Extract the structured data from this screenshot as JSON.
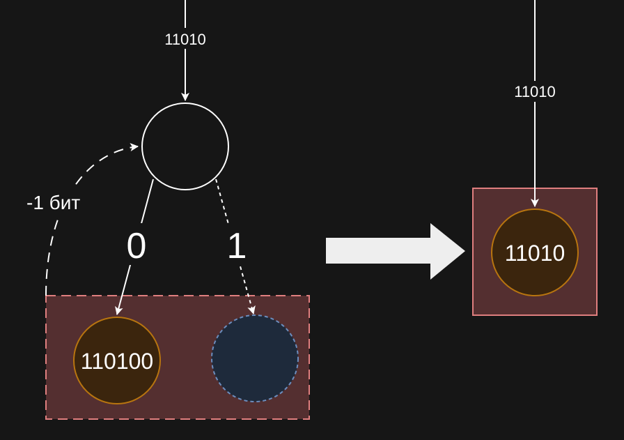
{
  "left_diagram": {
    "input_label": "11010",
    "backtrack_label": "-1 бит",
    "edge_zero_label": "0",
    "edge_one_label": "1",
    "left_child_value": "110100",
    "right_child_value": ""
  },
  "right_diagram": {
    "input_label": "11010",
    "node_value": "11010"
  },
  "colors": {
    "background": "#161616",
    "line": "#ffffff",
    "group_fill": "#542f30",
    "group_stroke": "#e07f7f",
    "value_node_fill": "#3b250d",
    "value_node_stroke": "#b8750f",
    "empty_node_fill": "#1e2a3b",
    "empty_node_stroke": "#6c8ebf",
    "arrow_fill": "#eeeeee"
  }
}
